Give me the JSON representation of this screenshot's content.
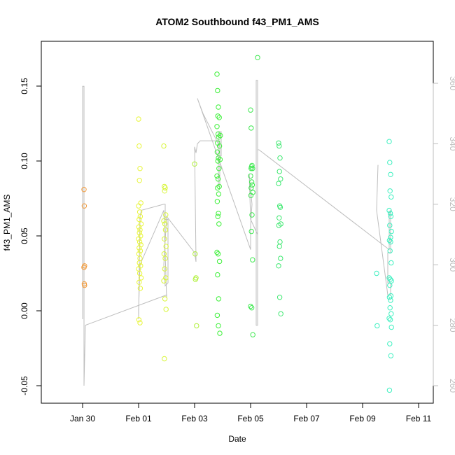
{
  "chart_data": {
    "type": "scatter",
    "title": "ATOM2 Southbound f43_PM1_AMS",
    "xlabel": "Date",
    "ylabel": "f43_PM1_AMS",
    "xlim": [
      -0.6,
      11.3
    ],
    "ylim": [
      -0.062,
      0.178
    ],
    "y2lim": [
      255,
      375
    ],
    "x_ticks": [
      {
        "value": 0,
        "label": "Jan 30"
      },
      {
        "value": 2,
        "label": "Feb 01"
      },
      {
        "value": 4,
        "label": "Feb 03"
      },
      {
        "value": 6,
        "label": "Feb 05"
      },
      {
        "value": 8,
        "label": "Feb 07"
      },
      {
        "value": 10,
        "label": "Feb 09"
      },
      {
        "value": 12,
        "label": "Feb 11"
      }
    ],
    "y_ticks": [
      {
        "value": -0.05,
        "label": "-0.05"
      },
      {
        "value": 0.0,
        "label": "0.00"
      },
      {
        "value": 0.05,
        "label": "0.05"
      },
      {
        "value": 0.1,
        "label": "0.10"
      },
      {
        "value": 0.15,
        "label": "0.15"
      }
    ],
    "y2_ticks": [
      {
        "value": 260,
        "label": "260"
      },
      {
        "value": 280,
        "label": "280"
      },
      {
        "value": 300,
        "label": "300"
      },
      {
        "value": 320,
        "label": "320"
      },
      {
        "value": 340,
        "label": "340"
      },
      {
        "value": 360,
        "label": "360"
      }
    ],
    "grid": false,
    "legend": "none",
    "colors": {
      "orange": "#f29a3a",
      "yellow": "#e8f53a",
      "yellowgreen": "#b8f03a",
      "green": "#3ef03a",
      "greenmid": "#3ee860",
      "cyan": "#3ef0c0",
      "track": "#bdbdbd"
    },
    "point_groups": [
      {
        "color": "#f29a3a",
        "x": [
          0.05,
          0.06,
          0.07,
          0.05,
          0.06,
          0.07,
          0.05
        ],
        "y": [
          0.081,
          0.07,
          0.03,
          0.029,
          0.018,
          0.017,
          0.029
        ]
      },
      {
        "color": "#e8f53a",
        "x": [
          2.0,
          2.02,
          2.05,
          2.03,
          2.08,
          2.0,
          2.04,
          2.06,
          2.02,
          2.09,
          2.01,
          2.05,
          2.03,
          2.07,
          2.0,
          2.04,
          2.08,
          2.02,
          2.06,
          2.01,
          2.05,
          2.03,
          2.07,
          2.0,
          2.04,
          2.09,
          2.02,
          2.06,
          2.01,
          2.05
        ],
        "y": [
          0.128,
          0.11,
          0.095,
          0.087,
          0.072,
          0.07,
          0.066,
          0.063,
          0.061,
          0.058,
          0.056,
          0.054,
          0.052,
          0.05,
          0.048,
          0.046,
          0.044,
          0.042,
          0.04,
          0.038,
          0.035,
          0.032,
          0.03,
          0.028,
          0.025,
          0.022,
          0.019,
          0.015,
          -0.006,
          -0.008
        ]
      },
      {
        "color": "#d8f53a",
        "x": [
          2.9,
          2.92,
          2.95,
          2.93,
          2.97,
          2.9,
          2.94,
          2.96,
          2.92,
          2.98,
          2.91,
          2.95,
          2.93,
          2.97,
          2.9,
          2.94,
          2.98,
          2.92
        ],
        "y": [
          0.11,
          0.083,
          0.082,
          0.08,
          0.064,
          0.06,
          0.058,
          0.054,
          0.048,
          0.043,
          0.038,
          0.035,
          0.028,
          0.022,
          0.02,
          0.008,
          0.001,
          -0.032
        ]
      },
      {
        "color": "#b0f03a",
        "x": [
          4.0,
          4.02,
          4.05,
          4.03,
          4.07
        ],
        "y": [
          0.098,
          0.038,
          0.022,
          0.021,
          -0.01
        ]
      },
      {
        "color": "#3ef03a",
        "x": [
          4.8,
          4.82,
          4.85,
          4.83,
          4.88,
          4.8,
          4.84,
          4.86,
          4.82,
          4.89,
          4.81,
          4.85,
          4.83,
          4.87,
          4.8,
          4.84,
          4.88,
          4.82,
          4.86,
          4.81,
          4.85,
          4.83,
          4.87,
          4.8,
          4.84,
          4.89,
          4.82,
          4.86,
          4.81,
          4.85,
          4.9,
          4.91,
          4.92
        ],
        "y": [
          0.158,
          0.147,
          0.136,
          0.13,
          0.129,
          0.123,
          0.118,
          0.116,
          0.112,
          0.11,
          0.106,
          0.102,
          0.1,
          0.095,
          0.09,
          0.088,
          0.083,
          0.082,
          0.078,
          0.073,
          0.065,
          0.063,
          0.058,
          0.039,
          0.038,
          0.033,
          0.024,
          0.008,
          -0.003,
          -0.01,
          -0.015,
          0.101,
          0.117
        ]
      },
      {
        "color": "#3ee850",
        "x": [
          6.0,
          6.02,
          6.05,
          6.03,
          6.07,
          6.0,
          6.04,
          6.06,
          6.02,
          6.08,
          6.01,
          6.05,
          6.03,
          6.07,
          6.0,
          6.04,
          6.08,
          6.02,
          6.25
        ],
        "y": [
          0.134,
          0.122,
          0.097,
          0.096,
          0.095,
          0.09,
          0.086,
          0.084,
          0.082,
          0.079,
          0.077,
          0.064,
          0.053,
          0.034,
          0.003,
          0.002,
          -0.016,
          0.095,
          0.169
        ]
      },
      {
        "color": "#3ee870",
        "x": [
          7.0,
          7.02,
          7.05,
          7.03,
          7.07,
          7.0,
          7.04,
          7.06,
          7.02,
          7.08,
          7.01,
          7.05,
          7.03,
          7.07,
          7.0,
          7.04,
          7.08
        ],
        "y": [
          0.112,
          0.11,
          0.102,
          0.093,
          0.088,
          0.085,
          0.07,
          0.069,
          0.062,
          0.058,
          0.057,
          0.046,
          0.043,
          0.035,
          0.03,
          0.009,
          -0.002
        ]
      },
      {
        "color": "#3ef0c0",
        "x": [
          10.95,
          10.97,
          11.0,
          10.98,
          11.02,
          10.95,
          10.99,
          11.01,
          10.97,
          11.03,
          10.96,
          11.0,
          10.98,
          11.02,
          10.95,
          10.99,
          11.03,
          10.97,
          11.01,
          10.96,
          11.0,
          10.98,
          11.02,
          10.95,
          10.99,
          11.03,
          10.97,
          11.01,
          10.96,
          11.0,
          10.5,
          10.52
        ],
        "y": [
          0.113,
          0.099,
          0.091,
          0.08,
          0.076,
          0.067,
          0.065,
          0.063,
          0.057,
          0.053,
          0.047,
          0.046,
          0.04,
          0.032,
          0.022,
          0.021,
          0.02,
          0.017,
          0.01,
          0.009,
          0.007,
          0.002,
          -0.002,
          -0.005,
          -0.006,
          -0.011,
          -0.022,
          -0.03,
          -0.053,
          0.049,
          0.025,
          -0.01
        ]
      }
    ],
    "track": {
      "axis": "y2",
      "x": [
        0.0,
        0.0,
        0.05,
        0.05,
        0.1,
        3.0,
        3.0,
        2.9,
        2.9,
        2.05,
        2.05,
        2.0,
        2.0,
        2.05,
        2.1,
        2.9,
        2.95,
        2.95,
        3.05,
        3.05,
        2.95,
        2.9,
        2.9,
        3.0,
        4.0,
        4.05,
        4.05,
        4.0,
        4.0,
        4.05,
        4.1,
        4.2,
        4.9,
        4.9,
        4.95,
        4.95,
        4.85,
        4.85,
        4.9,
        4.9,
        4.3,
        4.1,
        4.1,
        6.0,
        6.0,
        6.05,
        6.05,
        5.95,
        5.95,
        6.0,
        6.0,
        6.25,
        6.25,
        6.2,
        6.2,
        6.25,
        6.25,
        6.3,
        10.95,
        10.95,
        11.0,
        11.0,
        10.9,
        10.9,
        11.0,
        11.0,
        10.9,
        10.5,
        10.5,
        10.55
      ],
      "y": [
        282,
        359,
        359,
        260,
        280,
        290,
        289,
        318,
        318,
        300,
        300,
        285,
        282,
        316,
        318,
        320,
        320,
        315,
        315,
        294,
        293,
        300,
        300,
        316,
        304,
        301,
        302,
        339,
        339,
        337,
        340,
        341,
        341,
        336,
        336,
        344,
        344,
        326,
        326,
        339,
        350,
        355,
        355,
        305,
        313,
        320,
        320,
        330,
        330,
        315,
        315,
        310,
        361,
        361,
        280,
        280,
        338,
        338,
        305,
        317,
        318,
        304,
        304,
        294,
        294,
        290,
        290,
        318,
        318,
        333
      ]
    }
  }
}
